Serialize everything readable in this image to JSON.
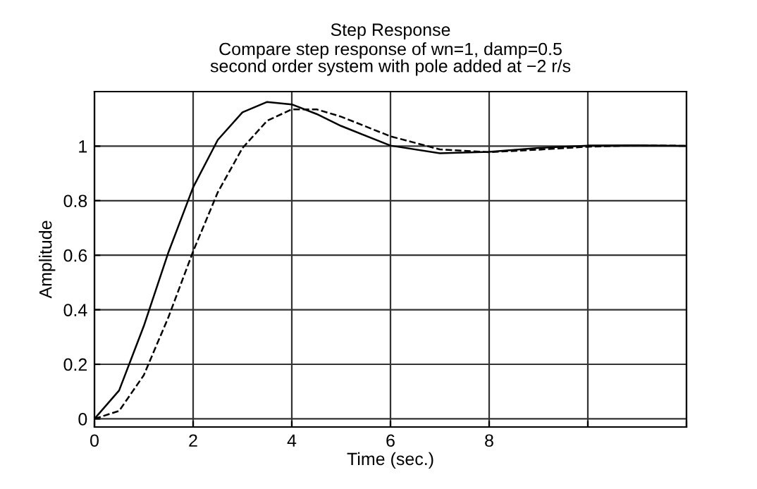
{
  "chart_data": {
    "type": "line",
    "title": "Step Response",
    "subtitle": "Compare step response of wn=1, damp=0.5\nsecond order system with pole added at −2 r/s",
    "xlabel": "Time (sec.)",
    "ylabel": "Amplitude",
    "x": [
      0,
      0.5,
      1,
      1.5,
      2,
      2.5,
      3,
      3.5,
      4,
      4.5,
      5,
      6,
      7,
      8,
      9,
      10,
      11,
      12
    ],
    "series": [
      {
        "color": "#000000",
        "line_style": "solid",
        "values": [
          0,
          0.104,
          0.34,
          0.611,
          0.849,
          1.023,
          1.124,
          1.162,
          1.153,
          1.118,
          1.074,
          1.002,
          0.974,
          0.979,
          0.993,
          1.002,
          1.003,
          1.001
        ]
      },
      {
        "color": "#000000",
        "line_style": "dashed",
        "values": [
          0,
          0.029,
          0.16,
          0.373,
          0.614,
          0.831,
          0.993,
          1.093,
          1.135,
          1.135,
          1.108,
          1.036,
          0.988,
          0.978,
          0.987,
          0.998,
          1.003,
          1.001
        ]
      }
    ],
    "xlim": [
      0,
      12
    ],
    "ylim": [
      -0.03,
      1.2
    ],
    "xticks": [
      0,
      2,
      4,
      6,
      8,
      {
        "value": 10,
        "label": null
      },
      {
        "value": 12,
        "label": null
      }
    ],
    "yticks": [
      0,
      0.2,
      0.4,
      0.6,
      0.8,
      1
    ],
    "grid": true,
    "legend": false,
    "marker": "none"
  }
}
